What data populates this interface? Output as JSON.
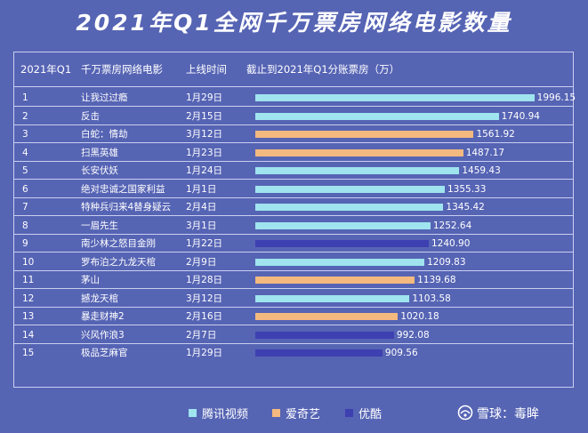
{
  "title": "2021年Q1全网千万票房网络电影数量",
  "headers": {
    "col1": "2021年Q1",
    "col2": "千万票房网络电影",
    "col3": "上线时间",
    "col4": "截止到2021年Q1分账票房（万）"
  },
  "colors": {
    "腾讯视频": "#9fe4ee",
    "爱奇艺": "#f4b97f",
    "优酷": "#3d40b0"
  },
  "chart_data": {
    "type": "bar",
    "title": "2021年Q1全网千万票房网络电影数量",
    "xlim": [
      0,
      2100
    ],
    "legend_position": "bottom",
    "series_names": [
      "腾讯视频",
      "爱奇艺",
      "优酷"
    ],
    "rows": [
      {
        "rank": "1",
        "name": "让我过过瘾",
        "date": "1月29日",
        "value": 1996.15,
        "value_label": "1996.15",
        "platform": "腾讯视频"
      },
      {
        "rank": "2",
        "name": "反击",
        "date": "2月15日",
        "value": 1740.94,
        "value_label": "1740.94",
        "platform": "腾讯视频"
      },
      {
        "rank": "3",
        "name": "白蛇：情劫",
        "date": "3月12日",
        "value": 1561.92,
        "value_label": "1561.92",
        "platform": "爱奇艺"
      },
      {
        "rank": "4",
        "name": "扫黑英雄",
        "date": "1月23日",
        "value": 1487.17,
        "value_label": "1487.17",
        "platform": "爱奇艺"
      },
      {
        "rank": "5",
        "name": "长安伏妖",
        "date": "1月24日",
        "value": 1459.43,
        "value_label": "1459.43",
        "platform": "腾讯视频"
      },
      {
        "rank": "6",
        "name": "绝对忠诚之国家利益",
        "date": "1月1日",
        "value": 1355.33,
        "value_label": "1355.33",
        "platform": "腾讯视频"
      },
      {
        "rank": "7",
        "name": "特种兵归来4替身疑云",
        "date": "2月4日",
        "value": 1345.42,
        "value_label": "1345.42",
        "platform": "腾讯视频"
      },
      {
        "rank": "8",
        "name": "一眉先生",
        "date": "3月1日",
        "value": 1252.64,
        "value_label": "1252.64",
        "platform": "腾讯视频"
      },
      {
        "rank": "9",
        "name": "南少林之怒目金刚",
        "date": "1月22日",
        "value": 1240.9,
        "value_label": "1240.90",
        "platform": "优酷"
      },
      {
        "rank": "10",
        "name": "罗布泊之九龙天棺",
        "date": "2月9日",
        "value": 1209.83,
        "value_label": "1209.83",
        "platform": "腾讯视频"
      },
      {
        "rank": "11",
        "name": "茅山",
        "date": "1月28日",
        "value": 1139.68,
        "value_label": "1139.68",
        "platform": "爱奇艺"
      },
      {
        "rank": "12",
        "name": "撼龙天棺",
        "date": "3月12日",
        "value": 1103.58,
        "value_label": "1103.58",
        "platform": "腾讯视频"
      },
      {
        "rank": "13",
        "name": "暴走财神2",
        "date": "2月16日",
        "value": 1020.18,
        "value_label": "1020.18",
        "platform": "爱奇艺"
      },
      {
        "rank": "14",
        "name": "兴风作浪3",
        "date": "2月7日",
        "value": 992.08,
        "value_label": "992.08",
        "platform": "优酷"
      },
      {
        "rank": "15",
        "name": "极品芝麻官",
        "date": "1月29日",
        "value": 909.56,
        "value_label": "909.56",
        "platform": "优酷"
      }
    ]
  },
  "legend": [
    {
      "label": "腾讯视频",
      "color": "#9fe4ee"
    },
    {
      "label": "爱奇艺",
      "color": "#f4b97f"
    },
    {
      "label": "优酷",
      "color": "#3d40b0"
    }
  ],
  "watermark": {
    "site": "雪球",
    "author": "毒眸"
  }
}
